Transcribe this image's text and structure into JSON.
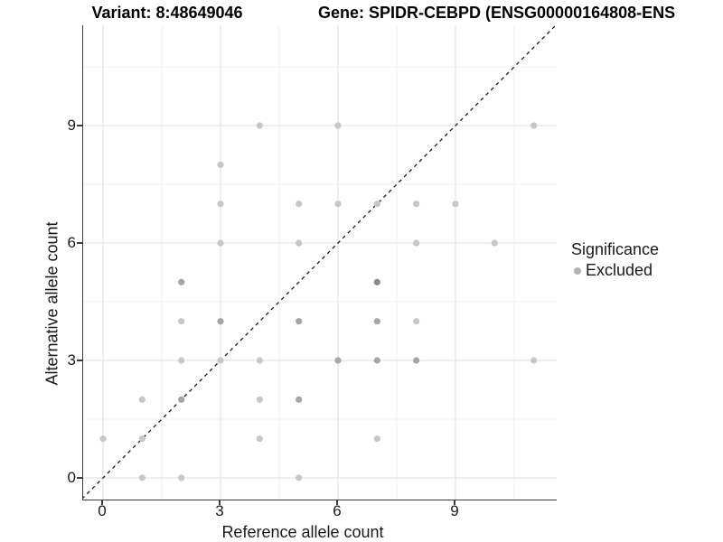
{
  "titles": {
    "left": "Variant: 8:48649046",
    "right": "Gene: SPIDR-CEBPD (ENSG00000164808-ENS"
  },
  "legend": {
    "title": "Significance",
    "items": [
      {
        "label": "Excluded",
        "color": "#b3b3b3"
      }
    ]
  },
  "chart_data": {
    "type": "scatter",
    "title": "Variant: 8:48649046 | Gene: SPIDR-CEBPD (ENSG00000164808-ENS…)",
    "xlabel": "Reference allele count",
    "ylabel": "Alternative allele count",
    "x_ticks": [
      0,
      3,
      6,
      9
    ],
    "y_ticks": [
      0,
      3,
      6,
      9
    ],
    "x_minor_ticks": [
      1.5,
      4.5,
      7.5,
      10.5
    ],
    "y_minor_ticks": [
      1.5,
      4.5,
      7.5,
      10.5
    ],
    "x_range": [
      -0.53,
      11.6
    ],
    "y_range": [
      -0.56,
      11.6
    ],
    "grid": {
      "major_color": "#e4e4e4",
      "minor_color": "#f1f1f1"
    },
    "identity_line": {
      "slope": 1,
      "intercept": 0,
      "style": "dashed",
      "color": "#1a1a1a"
    },
    "point_shade_colors": {
      "1": "#c7c7c7",
      "2": "#a6a6a6",
      "3": "#8a8a8a"
    },
    "points": [
      {
        "x": 0,
        "y": 1,
        "n": 1
      },
      {
        "x": 1,
        "y": 0,
        "n": 1
      },
      {
        "x": 1,
        "y": 1,
        "n": 1
      },
      {
        "x": 1,
        "y": 2,
        "n": 1
      },
      {
        "x": 2,
        "y": 0,
        "n": 1
      },
      {
        "x": 2,
        "y": 2,
        "n": 2
      },
      {
        "x": 2,
        "y": 3,
        "n": 1
      },
      {
        "x": 2,
        "y": 4,
        "n": 1
      },
      {
        "x": 2,
        "y": 5,
        "n": 2
      },
      {
        "x": 3,
        "y": 3,
        "n": 1
      },
      {
        "x": 3,
        "y": 4,
        "n": 2
      },
      {
        "x": 3,
        "y": 6,
        "n": 1
      },
      {
        "x": 3,
        "y": 7,
        "n": 1
      },
      {
        "x": 3,
        "y": 8,
        "n": 1
      },
      {
        "x": 4,
        "y": 1,
        "n": 1
      },
      {
        "x": 4,
        "y": 2,
        "n": 1
      },
      {
        "x": 4,
        "y": 3,
        "n": 1
      },
      {
        "x": 4,
        "y": 9,
        "n": 1
      },
      {
        "x": 5,
        "y": 0,
        "n": 1
      },
      {
        "x": 5,
        "y": 2,
        "n": 2
      },
      {
        "x": 5,
        "y": 4,
        "n": 2
      },
      {
        "x": 5,
        "y": 6,
        "n": 1
      },
      {
        "x": 5,
        "y": 7,
        "n": 1
      },
      {
        "x": 6,
        "y": 3,
        "n": 2
      },
      {
        "x": 6,
        "y": 7,
        "n": 1
      },
      {
        "x": 6,
        "y": 9,
        "n": 1
      },
      {
        "x": 7,
        "y": 1,
        "n": 1
      },
      {
        "x": 7,
        "y": 3,
        "n": 2
      },
      {
        "x": 7,
        "y": 4,
        "n": 2
      },
      {
        "x": 7,
        "y": 5,
        "n": 3
      },
      {
        "x": 7,
        "y": 7,
        "n": 1
      },
      {
        "x": 8,
        "y": 3,
        "n": 2
      },
      {
        "x": 8,
        "y": 4,
        "n": 1
      },
      {
        "x": 8,
        "y": 6,
        "n": 1
      },
      {
        "x": 8,
        "y": 7,
        "n": 1
      },
      {
        "x": 9,
        "y": 7,
        "n": 1
      },
      {
        "x": 10,
        "y": 6,
        "n": 1
      },
      {
        "x": 11,
        "y": 3,
        "n": 1
      },
      {
        "x": 11,
        "y": 9,
        "n": 1
      }
    ],
    "legend": {
      "title": "Significance",
      "items": [
        {
          "label": "Excluded"
        }
      ]
    }
  }
}
